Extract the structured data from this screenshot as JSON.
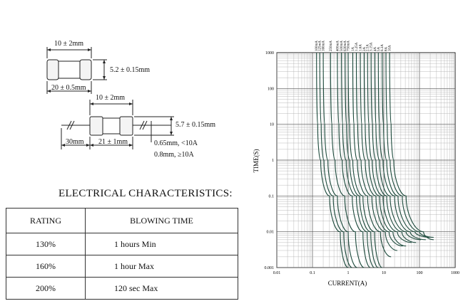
{
  "drawings": {
    "top_fuse": {
      "cap_length": "10 ± 2mm",
      "diameter": "5.2 ± 0.15mm",
      "body_length": "20 ± 0.5mm"
    },
    "leaded_fuse": {
      "cap_length": "10 ± 2mm",
      "diameter": "5.7 ± 0.15mm",
      "lead_length": "30mm",
      "body_length": "21 ± 1mm",
      "lead_dia_small": "0.65mm, <10A",
      "lead_dia_large": "0.8mm, ≥10A"
    }
  },
  "electrical": {
    "title": "ELECTRICAL CHARACTERISTICS:",
    "headers": [
      "RATING",
      "BLOWING TIME"
    ],
    "rows": [
      {
        "rating": "130%",
        "time": "1 hours Min"
      },
      {
        "rating": "160%",
        "time": "1 hour Max"
      },
      {
        "rating": "200%",
        "time": "120 sec Max"
      }
    ]
  },
  "chart_data": {
    "type": "line",
    "xlabel": "CURRENT(A)",
    "ylabel": "TIME(S)",
    "x_scale": "log",
    "y_scale": "log",
    "xlim": [
      0.01,
      1000
    ],
    "ylim": [
      0.001,
      1000
    ],
    "xticks": [
      "0.01",
      "0.1",
      "1",
      "10",
      "100",
      "1000"
    ],
    "yticks": [
      "1000",
      "100",
      "10",
      "1",
      "0.1",
      "0.01",
      "0.001"
    ],
    "grid": true,
    "series": [
      {
        "name": "100mA",
        "points": [
          [
            0.13,
            1000
          ],
          [
            0.14,
            10
          ],
          [
            0.17,
            1
          ],
          [
            0.3,
            0.1
          ],
          [
            0.6,
            0.01
          ],
          [
            1.0,
            0.001
          ]
        ]
      },
      {
        "name": "125mA",
        "points": [
          [
            0.16,
            1000
          ],
          [
            0.175,
            10
          ],
          [
            0.21,
            1
          ],
          [
            0.38,
            0.1
          ],
          [
            0.75,
            0.01
          ],
          [
            1.3,
            0.001
          ]
        ]
      },
      {
        "name": "160mA",
        "points": [
          [
            0.2,
            1000
          ],
          [
            0.22,
            10
          ],
          [
            0.27,
            1
          ],
          [
            0.5,
            0.1
          ],
          [
            1.0,
            0.01
          ],
          [
            1.8,
            0.001
          ]
        ]
      },
      {
        "name": "250mA",
        "points": [
          [
            0.32,
            1000
          ],
          [
            0.35,
            10
          ],
          [
            0.43,
            1
          ],
          [
            0.8,
            0.1
          ],
          [
            1.6,
            0.01
          ],
          [
            2.8,
            0.001
          ]
        ]
      },
      {
        "name": "400mA",
        "points": [
          [
            0.5,
            1000
          ],
          [
            0.55,
            10
          ],
          [
            0.68,
            1
          ],
          [
            1.3,
            0.1
          ],
          [
            2.6,
            0.01
          ],
          [
            4.2,
            0.001
          ]
        ]
      },
      {
        "name": "500mA",
        "points": [
          [
            0.65,
            1000
          ],
          [
            0.7,
            10
          ],
          [
            0.88,
            1
          ],
          [
            1.7,
            0.1
          ],
          [
            3.4,
            0.01
          ],
          [
            5.5,
            0.001
          ]
        ]
      },
      {
        "name": "630mA",
        "points": [
          [
            0.82,
            1000
          ],
          [
            0.9,
            10
          ],
          [
            1.1,
            1
          ],
          [
            2.1,
            0.1
          ],
          [
            4.3,
            0.01
          ],
          [
            7.0,
            0.001
          ]
        ]
      },
      {
        "name": "750mA",
        "points": [
          [
            1.0,
            1000
          ],
          [
            1.1,
            10
          ],
          [
            1.35,
            1
          ],
          [
            2.6,
            0.1
          ],
          [
            5.5,
            0.01
          ],
          [
            9.0,
            0.001
          ]
        ]
      },
      {
        "name": "1A",
        "points": [
          [
            1.35,
            1000
          ],
          [
            1.45,
            10
          ],
          [
            1.8,
            1
          ],
          [
            3.5,
            0.1
          ],
          [
            8,
            0.01
          ],
          [
            16,
            0.002
          ]
        ]
      },
      {
        "name": "1.25A",
        "points": [
          [
            1.7,
            1000
          ],
          [
            1.85,
            10
          ],
          [
            2.3,
            1
          ],
          [
            4.6,
            0.1
          ],
          [
            11,
            0.01
          ],
          [
            24,
            0.003
          ]
        ]
      },
      {
        "name": "1.6A",
        "points": [
          [
            2.2,
            1000
          ],
          [
            2.4,
            10
          ],
          [
            3.0,
            1
          ],
          [
            6.0,
            0.1
          ],
          [
            14,
            0.01
          ],
          [
            34,
            0.004
          ]
        ]
      },
      {
        "name": "2A",
        "points": [
          [
            2.8,
            1000
          ],
          [
            3.0,
            10
          ],
          [
            3.8,
            1
          ],
          [
            7.6,
            0.1
          ],
          [
            18,
            0.01
          ],
          [
            42,
            0.004
          ]
        ]
      },
      {
        "name": "2.5A",
        "points": [
          [
            3.5,
            1000
          ],
          [
            3.8,
            10
          ],
          [
            4.7,
            1
          ],
          [
            9.5,
            0.1
          ],
          [
            24,
            0.01
          ],
          [
            60,
            0.005
          ]
        ]
      },
      {
        "name": "3.15A",
        "points": [
          [
            4.4,
            1000
          ],
          [
            4.8,
            10
          ],
          [
            6.0,
            1
          ],
          [
            12,
            0.1
          ],
          [
            32,
            0.01
          ],
          [
            80,
            0.005
          ]
        ]
      },
      {
        "name": "4A",
        "points": [
          [
            5.6,
            1000
          ],
          [
            6.0,
            10
          ],
          [
            7.6,
            1
          ],
          [
            15,
            0.1
          ],
          [
            42,
            0.01
          ],
          [
            110,
            0.006
          ]
        ]
      },
      {
        "name": "5A",
        "points": [
          [
            7.0,
            1000
          ],
          [
            7.6,
            10
          ],
          [
            9.5,
            1
          ],
          [
            20,
            0.1
          ],
          [
            55,
            0.01
          ],
          [
            150,
            0.006
          ]
        ]
      },
      {
        "name": "6.3A",
        "points": [
          [
            9.0,
            1000
          ],
          [
            9.8,
            10
          ],
          [
            12,
            1
          ],
          [
            25,
            0.1
          ],
          [
            75,
            0.01
          ],
          [
            200,
            0.007
          ]
        ]
      },
      {
        "name": "8A",
        "points": [
          [
            11.5,
            1000
          ],
          [
            12.5,
            10
          ],
          [
            15,
            1
          ],
          [
            33,
            0.1
          ],
          [
            100,
            0.01
          ],
          [
            250,
            0.007
          ]
        ]
      },
      {
        "name": "10A",
        "points": [
          [
            14.5,
            1000
          ],
          [
            16,
            10
          ],
          [
            19,
            1
          ],
          [
            42,
            0.1
          ],
          [
            130,
            0.01
          ],
          [
            250,
            0.006
          ]
        ]
      }
    ]
  }
}
